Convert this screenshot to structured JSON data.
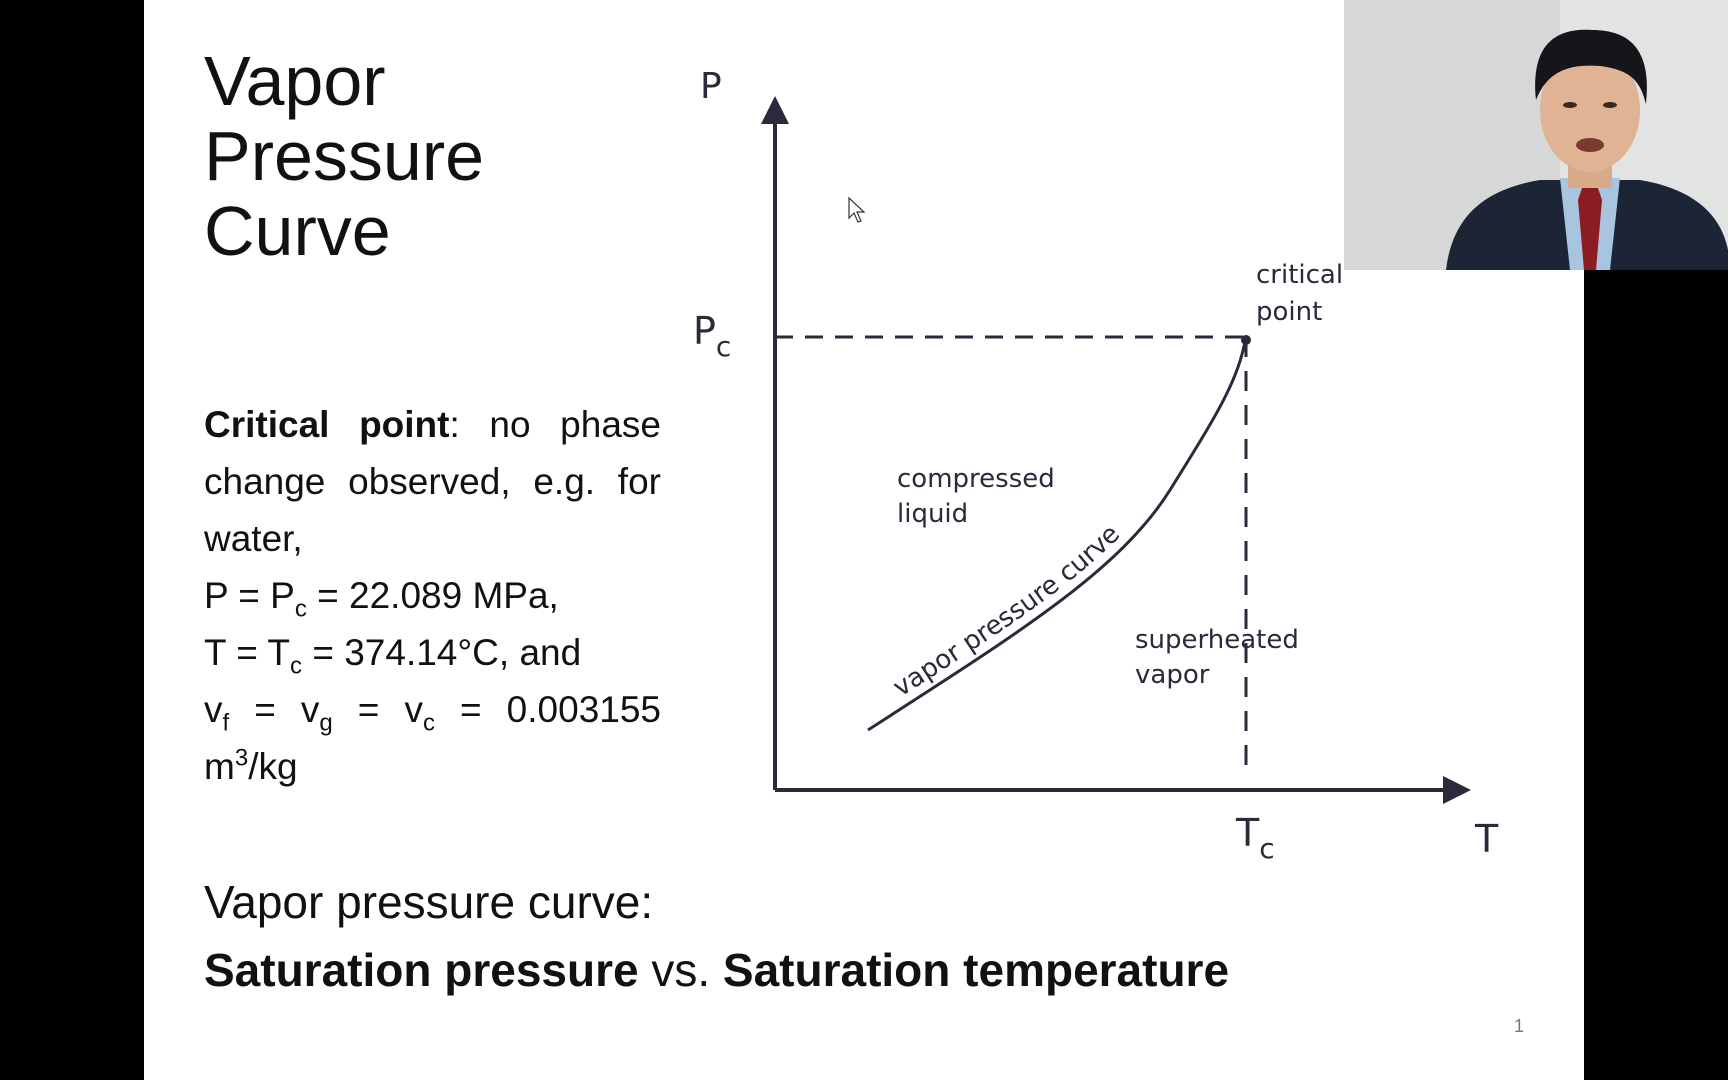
{
  "slide": {
    "title": [
      "Vapor",
      "Pressure",
      "Curve"
    ],
    "body": {
      "critical_point": {
        "term": "Critical point",
        "text": ": no phase change observed, e.g. for water,"
      },
      "pressure": {
        "a": "P = P",
        "sub": "c",
        "b": " = 22.089 MPa,"
      },
      "temperature": {
        "a": "T = T",
        "sub": "c",
        "b": " = 374.14°C, and"
      },
      "volume": {
        "a": "v",
        "sub1": "f",
        "b": " = v",
        "sub2": "g",
        "c": " = v",
        "sub3": "c",
        "d": " = 0.003155 m",
        "sup": "3",
        "e": "/kg"
      }
    },
    "diagram": {
      "y_axis": "P",
      "pc": "P",
      "pc_sub": "c",
      "x_axis": "T",
      "tc": "T",
      "tc_sub": "c",
      "critical_point": [
        "critical",
        "point"
      ],
      "compressed_liquid": [
        "compressed",
        "liquid"
      ],
      "superheated_vapor": [
        "superheated",
        "vapor"
      ],
      "curve_label": "vapor pressure curve"
    },
    "footer": {
      "line1": "Vapor pressure curve:",
      "bold1": "Saturation pressure",
      "mid": " vs. ",
      "bold2": "Saturation temperature"
    },
    "page_number": "1"
  }
}
